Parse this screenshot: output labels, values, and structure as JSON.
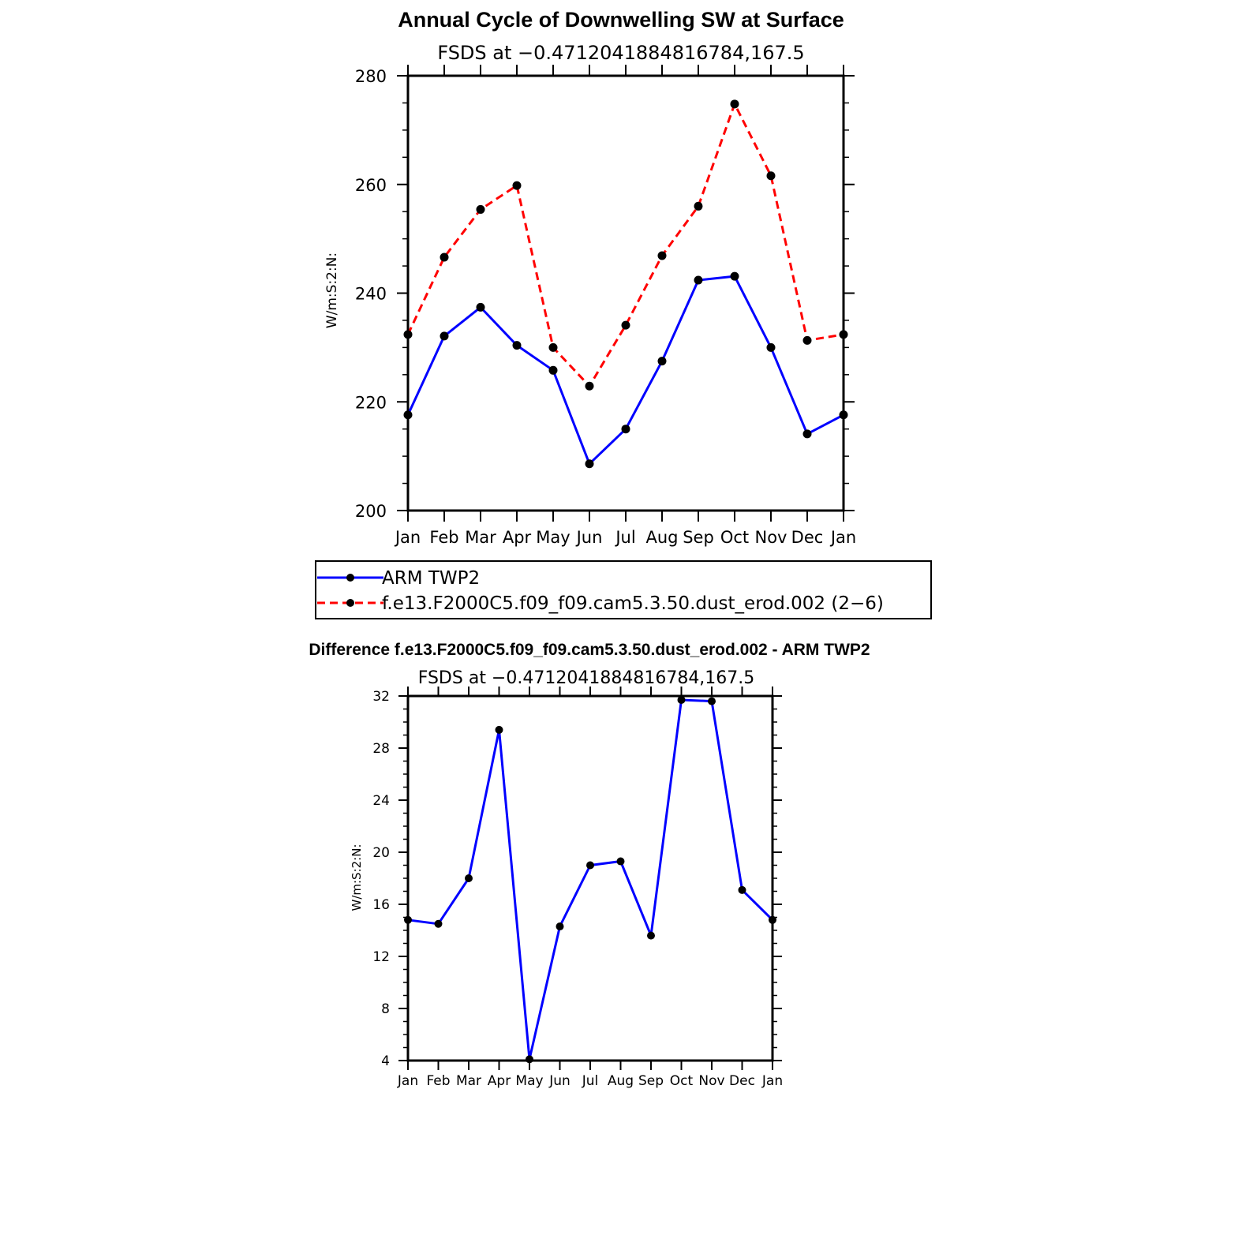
{
  "chart_data": [
    {
      "type": "line",
      "title": "Annual Cycle of Downwelling SW at Surface",
      "subtitle": "FSDS at −0.4712041884816784,167.5",
      "ylabel": "W/m:S:2:N:",
      "xlabel": "",
      "categories": [
        "Jan",
        "Feb",
        "Mar",
        "Apr",
        "May",
        "Jun",
        "Jul",
        "Aug",
        "Sep",
        "Oct",
        "Nov",
        "Dec",
        "Jan"
      ],
      "ylim": [
        200,
        280
      ],
      "yticks": [
        200,
        220,
        240,
        260,
        280
      ],
      "grid": false,
      "legend_position": "below",
      "series": [
        {
          "name": "ARM TWP2",
          "color": "#0000ff",
          "dash": "solid",
          "values": [
            217.6,
            232.1,
            237.4,
            230.4,
            225.8,
            208.6,
            215.0,
            227.5,
            242.4,
            243.1,
            230.0,
            214.1,
            217.6
          ]
        },
        {
          "name": "f.e13.F2000C5.f09_f09.cam5.3.50.dust_erod.002 (2−6)",
          "color": "#ff0000",
          "dash": "dashed",
          "values": [
            232.4,
            246.6,
            255.4,
            259.8,
            230.0,
            222.9,
            234.1,
            246.9,
            256.0,
            274.8,
            261.6,
            231.3,
            232.4
          ]
        }
      ]
    },
    {
      "type": "line",
      "title": "Difference f.e13.F2000C5.f09_f09.cam5.3.50.dust_erod.002 - ARM TWP2",
      "subtitle": "FSDS at −0.4712041884816784,167.5",
      "ylabel": "W/m:S:2:N:",
      "xlabel": "",
      "categories": [
        "Jan",
        "Feb",
        "Mar",
        "Apr",
        "May",
        "Jun",
        "Jul",
        "Aug",
        "Sep",
        "Oct",
        "Nov",
        "Dec",
        "Jan"
      ],
      "ylim": [
        4,
        32
      ],
      "yticks": [
        4,
        8,
        12,
        16,
        20,
        24,
        28,
        32
      ],
      "grid": false,
      "series": [
        {
          "color": "#0000ff",
          "dash": "solid",
          "values": [
            14.8,
            14.5,
            18.0,
            29.4,
            4.1,
            14.3,
            19.0,
            19.3,
            13.6,
            31.7,
            31.6,
            17.1,
            14.8
          ]
        }
      ]
    }
  ]
}
